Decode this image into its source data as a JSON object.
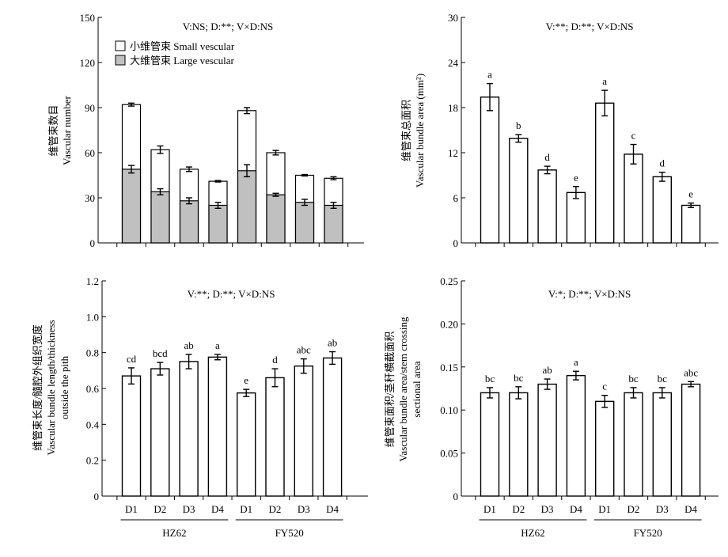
{
  "figure": {
    "x_groups": [
      {
        "label": "HZ62",
        "ticks": [
          "D1",
          "D2",
          "D3",
          "D4"
        ]
      },
      {
        "label": "FY520",
        "ticks": [
          "D1",
          "D2",
          "D3",
          "D4"
        ]
      }
    ]
  },
  "chart_data": [
    {
      "type": "bar",
      "stacked": true,
      "categories": [
        "HZ62 D1",
        "HZ62 D2",
        "HZ62 D3",
        "HZ62 D4",
        "FY520 D1",
        "FY520 D2",
        "FY520 D3",
        "FY520 D4"
      ],
      "annotation": "V:NS; D:**;  V×D:NS",
      "ylabel_cn": "维管束数目",
      "ylabel_en": "Vascular number",
      "ylim": [
        0,
        150
      ],
      "yticks": [
        "0",
        "30",
        "60",
        "90",
        "120",
        "150"
      ],
      "legend_position": "top-left",
      "series": [
        {
          "name": "大维管束 Large vescular",
          "color": "#c0c0c0",
          "values": [
            49,
            34,
            28,
            25,
            48,
            32,
            27,
            25
          ],
          "errors": [
            2.5,
            2,
            2,
            2,
            4,
            1,
            2,
            2
          ]
        },
        {
          "name": "小维管束 Small vescular",
          "color": "#ffffff",
          "totals": [
            92,
            62,
            49,
            41,
            88,
            60,
            45,
            43
          ],
          "errors": [
            1,
            2.5,
            1.5,
            0.5,
            2,
            1.5,
            0.5,
            1
          ]
        }
      ]
    },
    {
      "type": "bar",
      "categories": [
        "HZ62 D1",
        "HZ62 D2",
        "HZ62 D3",
        "HZ62 D4",
        "FY520 D1",
        "FY520 D2",
        "FY520 D3",
        "FY520 D4"
      ],
      "annotation": "V:**; D:**;  V×D:NS",
      "ylabel_cn": "维管束总面积",
      "ylabel_en": "Vascular bundle area (mm²)",
      "ylim": [
        0,
        30
      ],
      "yticks": [
        "0",
        "6",
        "12",
        "18",
        "24",
        "30"
      ],
      "values": [
        19.4,
        13.9,
        9.7,
        6.7,
        18.6,
        11.8,
        8.8,
        5.0
      ],
      "errors": [
        1.8,
        0.5,
        0.5,
        0.8,
        1.7,
        1.3,
        0.6,
        0.3
      ],
      "letters": [
        "a",
        "b",
        "d",
        "e",
        "a",
        "c",
        "d",
        "e"
      ]
    },
    {
      "type": "bar",
      "categories": [
        "HZ62 D1",
        "HZ62 D2",
        "HZ62 D3",
        "HZ62 D4",
        "FY520 D1",
        "FY520 D2",
        "FY520 D3",
        "FY520 D4"
      ],
      "annotation": "V:**; D:**;  V×D:NS",
      "ylabel_cn": "维管束长度/髓腔外组织宽度",
      "ylabel_en": "Vascular bundle length/thickness",
      "ylabel_en2": "outside the pith",
      "ylim": [
        0,
        1.2
      ],
      "yticks": [
        "0",
        "0.2",
        "0.4",
        "0.6",
        "0.8",
        "1.0",
        "1.2"
      ],
      "values": [
        0.67,
        0.71,
        0.75,
        0.775,
        0.575,
        0.66,
        0.725,
        0.77
      ],
      "errors": [
        0.045,
        0.035,
        0.04,
        0.015,
        0.02,
        0.05,
        0.04,
        0.035
      ],
      "letters": [
        "cd",
        "bcd",
        "ab",
        "a",
        "e",
        "d",
        "abc",
        "ab"
      ]
    },
    {
      "type": "bar",
      "categories": [
        "HZ62 D1",
        "HZ62 D2",
        "HZ62 D3",
        "HZ62 D4",
        "FY520 D1",
        "FY520 D2",
        "FY520 D3",
        "FY520 D4"
      ],
      "annotation": "V:*; D:**;  V×D:NS",
      "ylabel_cn": "维管束面积/茎秆横截面积",
      "ylabel_en": "Vascular bundle area/stem crossing",
      "ylabel_en2": "sectional area",
      "ylim": [
        0,
        0.25
      ],
      "yticks": [
        "0",
        "0.05",
        "0.10",
        "0.15",
        "0.20",
        "0.25"
      ],
      "values": [
        0.12,
        0.12,
        0.13,
        0.14,
        0.11,
        0.12,
        0.12,
        0.13
      ],
      "errors": [
        0.006,
        0.007,
        0.006,
        0.005,
        0.007,
        0.006,
        0.006,
        0.003
      ],
      "letters": [
        "bc",
        "bc",
        "ab",
        "a",
        "c",
        "bc",
        "bc",
        "abc"
      ]
    }
  ]
}
